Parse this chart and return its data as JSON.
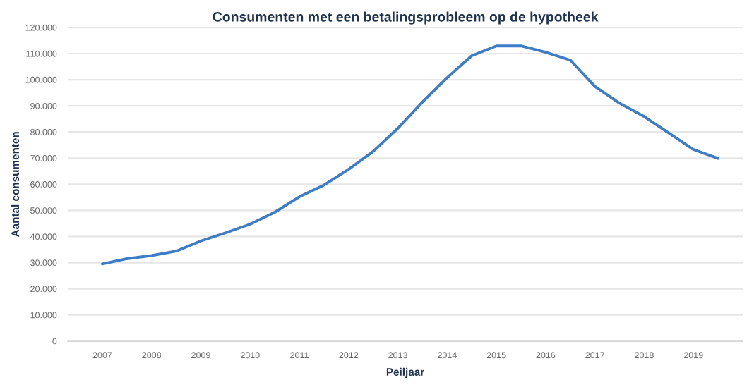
{
  "chart_data": {
    "type": "line",
    "title": "Consumenten met een betalingsprobleem op de hypotheek",
    "xlabel": "Peiljaar",
    "ylabel": "Aantal consumenten",
    "x": [
      2007,
      2007.5,
      2008,
      2008.5,
      2009,
      2009.5,
      2010,
      2010.5,
      2011,
      2011.5,
      2012,
      2012.5,
      2013,
      2013.5,
      2014,
      2014.5,
      2015,
      2015.5,
      2016,
      2016.5,
      2017,
      2017.5,
      2018,
      2018.5,
      2019,
      2019.5
    ],
    "series": [
      {
        "color": "#3d7cc9",
        "values": [
          29500,
          31500,
          32700,
          34400,
          38300,
          41400,
          44700,
          49300,
          55200,
          59700,
          65700,
          72600,
          81400,
          91500,
          100800,
          109200,
          112900,
          112900,
          110500,
          107500,
          97400,
          91000,
          85900,
          79600,
          73300,
          69900
        ]
      }
    ],
    "xlim": [
      2006.3,
      2020
    ],
    "xticks": [
      2007,
      2008,
      2009,
      2010,
      2011,
      2012,
      2013,
      2014,
      2015,
      2016,
      2017,
      2018,
      2019
    ],
    "ylim": [
      0,
      120000
    ],
    "yticks": [
      {
        "value": 0,
        "label": "0"
      },
      {
        "value": 10000,
        "label": "10.000"
      },
      {
        "value": 20000,
        "label": "20.000"
      },
      {
        "value": 30000,
        "label": "30.000"
      },
      {
        "value": 40000,
        "label": "40.000"
      },
      {
        "value": 50000,
        "label": "50.000"
      },
      {
        "value": 60000,
        "label": "60.000"
      },
      {
        "value": 70000,
        "label": "70.000"
      },
      {
        "value": 80000,
        "label": "80.000"
      },
      {
        "value": 90000,
        "label": "90.000"
      },
      {
        "value": 100000,
        "label": "100.000"
      },
      {
        "value": 110000,
        "label": "110.000"
      },
      {
        "value": 120000,
        "label": "120.000"
      }
    ],
    "grid": "y",
    "marker": "none",
    "line_style": "solid"
  }
}
